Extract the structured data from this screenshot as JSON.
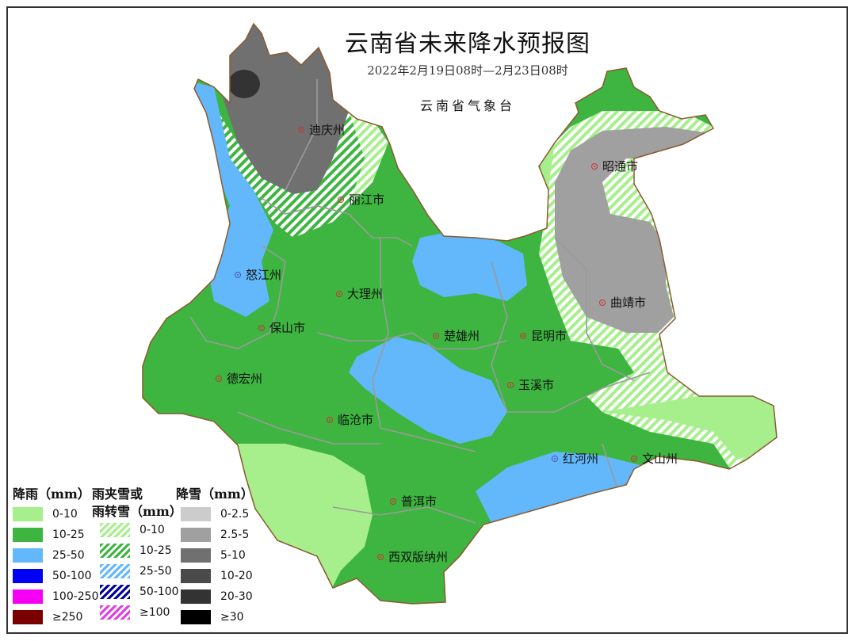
{
  "title": "云南省未来降水预报图",
  "subtitle": "2022年2月19日08时—2月23日08时",
  "issuer": "云南省气象台",
  "cities": [
    {
      "name": "迪庆州",
      "marker": "red"
    },
    {
      "name": "丽江市",
      "marker": "red"
    },
    {
      "name": "怒江州",
      "marker": "blue"
    },
    {
      "name": "大理州",
      "marker": "red"
    },
    {
      "name": "保山市",
      "marker": "red"
    },
    {
      "name": "楚雄州",
      "marker": "red"
    },
    {
      "name": "昆明市",
      "marker": "red"
    },
    {
      "name": "昭通市",
      "marker": "red"
    },
    {
      "name": "曲靖市",
      "marker": "red"
    },
    {
      "name": "德宏州",
      "marker": "red"
    },
    {
      "name": "临沧市",
      "marker": "red"
    },
    {
      "name": "玉溪市",
      "marker": "red"
    },
    {
      "name": "红河州",
      "marker": "blue"
    },
    {
      "name": "文山州",
      "marker": "red"
    },
    {
      "name": "普洱市",
      "marker": "red"
    },
    {
      "name": "西双版纳州",
      "marker": "red"
    }
  ],
  "legend": {
    "rain": {
      "title": "降雨（mm）",
      "items": [
        {
          "label": "0-10",
          "color": "#a6ef8c"
        },
        {
          "label": "10-25",
          "color": "#3db540"
        },
        {
          "label": "25-50",
          "color": "#62b8fb"
        },
        {
          "label": "50-100",
          "color": "#0000f5"
        },
        {
          "label": "100-250",
          "color": "#f500f5"
        },
        {
          "label": "≥250",
          "color": "#7a0000"
        }
      ]
    },
    "sleet": {
      "title_line1": "雨夹雪或",
      "title_line2": "雨转雪（mm）",
      "items": [
        {
          "label": "0-10",
          "color": "#a6ef8c"
        },
        {
          "label": "10-25",
          "color": "#3db540"
        },
        {
          "label": "25-50",
          "color": "#62b8fb"
        },
        {
          "label": "50-100",
          "color": "#0000a0"
        },
        {
          "label": "≥100",
          "color": "#e040e0"
        }
      ]
    },
    "snow": {
      "title": "降雪（mm）",
      "items": [
        {
          "label": "0-2.5",
          "color": "#cccccc"
        },
        {
          "label": "2.5-5",
          "color": "#a0a0a0"
        },
        {
          "label": "5-10",
          "color": "#707070"
        },
        {
          "label": "10-20",
          "color": "#4a4a4a"
        },
        {
          "label": "20-30",
          "color": "#333333"
        },
        {
          "label": "≥30",
          "color": "#000000"
        }
      ]
    }
  }
}
